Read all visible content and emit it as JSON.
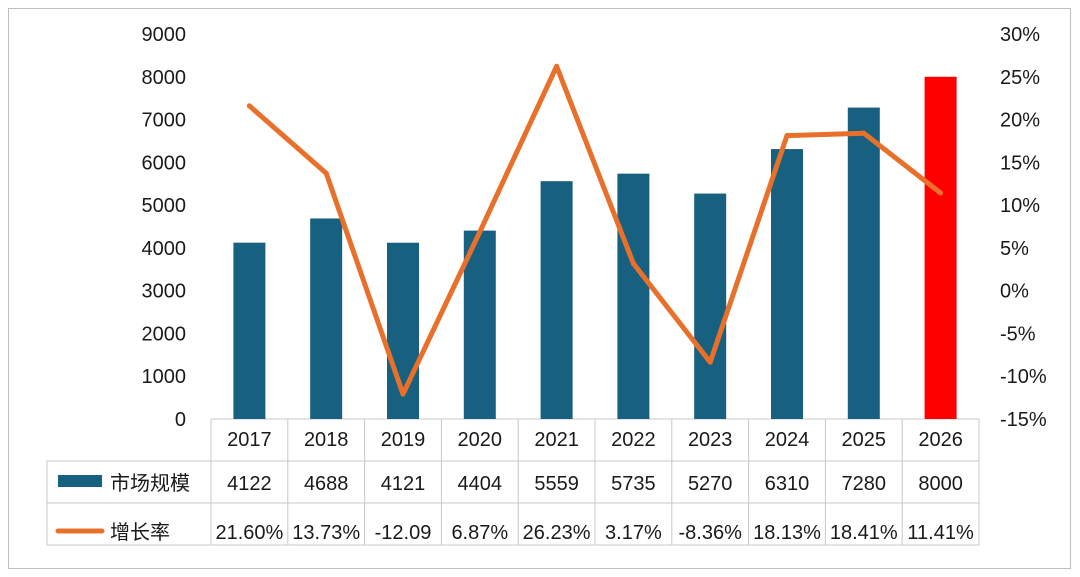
{
  "chart_data": {
    "type": "bar",
    "categories": [
      "2017",
      "2018",
      "2019",
      "2020",
      "2021",
      "2022",
      "2023",
      "2024",
      "2025",
      "2026"
    ],
    "series": [
      {
        "name": "市场规模",
        "chart_type": "bar",
        "axis": "left",
        "color": "#17607f",
        "highlight_color": "#ff0000",
        "highlight_index": 9,
        "values": [
          4122,
          4688,
          4121,
          4404,
          5559,
          5735,
          5270,
          6310,
          7280,
          8000
        ],
        "labels": [
          "4122",
          "4688",
          "4121",
          "4404",
          "5559",
          "5735",
          "5270",
          "6310",
          "7280",
          "8000"
        ]
      },
      {
        "name": "增长率",
        "chart_type": "line",
        "axis": "right",
        "color": "#e8702a",
        "values": [
          21.6,
          13.73,
          -12.09,
          6.87,
          26.23,
          3.17,
          -8.36,
          18.13,
          18.41,
          11.41
        ],
        "labels": [
          "21.60%",
          "13.73%",
          "-12.09",
          "6.87%",
          "26.23%",
          "3.17%",
          "-8.36%",
          "18.13%",
          "18.41%",
          "11.41%"
        ]
      }
    ],
    "y_left": {
      "ylim": [
        0,
        9000
      ],
      "ticks": [
        "0",
        "1000",
        "2000",
        "3000",
        "4000",
        "5000",
        "6000",
        "7000",
        "8000",
        "9000"
      ]
    },
    "y_right": {
      "ylim": [
        -15,
        30
      ],
      "ticks": [
        "-15%",
        "-10%",
        "-5%",
        "0%",
        "5%",
        "10%",
        "15%",
        "20%",
        "25%",
        "30%"
      ]
    },
    "grid": false,
    "legend": "data-table",
    "title": "",
    "xlabel": "",
    "ylabel": ""
  }
}
